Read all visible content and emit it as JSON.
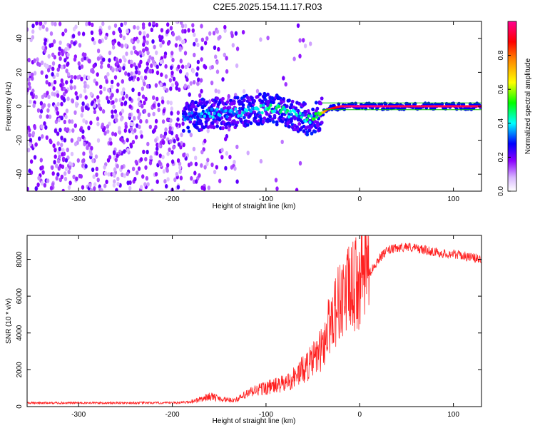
{
  "title": "C2E5.2025.154.11.17.R03",
  "chart_data": [
    {
      "type": "heatmap",
      "xlabel": "Height of straight line (km)",
      "ylabel": "Frequency (Hz)",
      "xlim": [
        -355,
        130
      ],
      "ylim": [
        -50,
        50
      ],
      "xticks": [
        -300,
        -200,
        -100,
        0,
        100
      ],
      "yticks": [
        -40,
        -20,
        0,
        20,
        40
      ],
      "colorbar": {
        "label": "Normalized spectral amplitude",
        "range": [
          0,
          1
        ],
        "ticks": [
          0.0,
          0.2,
          0.4,
          0.6,
          0.8
        ],
        "colors": [
          "#ffffff",
          "#8a00ff",
          "#0000ff",
          "#00ffff",
          "#00ff00",
          "#ffff00",
          "#ff0000",
          "#ff0090"
        ]
      },
      "signal_trace": {
        "x": [
          -185,
          -170,
          -155,
          -140,
          -125,
          -110,
          -95,
          -80,
          -65,
          -55,
          -45,
          -35,
          -20,
          0,
          50,
          100,
          130
        ],
        "y": [
          -6,
          -5,
          -4,
          -4,
          -3,
          -2,
          -1,
          -3,
          -6,
          -8,
          -6,
          -2,
          0,
          0,
          0,
          0,
          0
        ],
        "amplitude": [
          0.35,
          0.35,
          0.4,
          0.35,
          0.4,
          0.4,
          0.45,
          0.45,
          0.4,
          0.45,
          0.6,
          0.8,
          0.95,
          1.0,
          0.95,
          0.95,
          0.95
        ]
      }
    },
    {
      "type": "line",
      "xlabel": "Height of straight line (km)",
      "ylabel": "SNR (10 * v/v)",
      "xlim": [
        -355,
        130
      ],
      "ylim": [
        0,
        9300
      ],
      "xticks": [
        -300,
        -200,
        -100,
        0,
        100
      ],
      "yticks": [
        0,
        2000,
        4000,
        6000,
        8000
      ],
      "color": "#ff2020",
      "x": [
        -355,
        -300,
        -250,
        -200,
        -180,
        -170,
        -160,
        -150,
        -140,
        -130,
        -120,
        -110,
        -100,
        -90,
        -80,
        -70,
        -60,
        -50,
        -40,
        -30,
        -20,
        -10,
        0,
        10,
        20,
        30,
        40,
        50,
        60,
        70,
        80,
        90,
        100,
        110,
        120,
        130
      ],
      "y": [
        200,
        200,
        200,
        200,
        250,
        350,
        500,
        400,
        300,
        350,
        600,
        800,
        900,
        1000,
        1100,
        1400,
        1800,
        2200,
        2800,
        4300,
        5200,
        5600,
        6000,
        7200,
        8000,
        8500,
        8600,
        8700,
        8600,
        8500,
        8400,
        8300,
        8300,
        8200,
        8100,
        8000
      ]
    }
  ]
}
